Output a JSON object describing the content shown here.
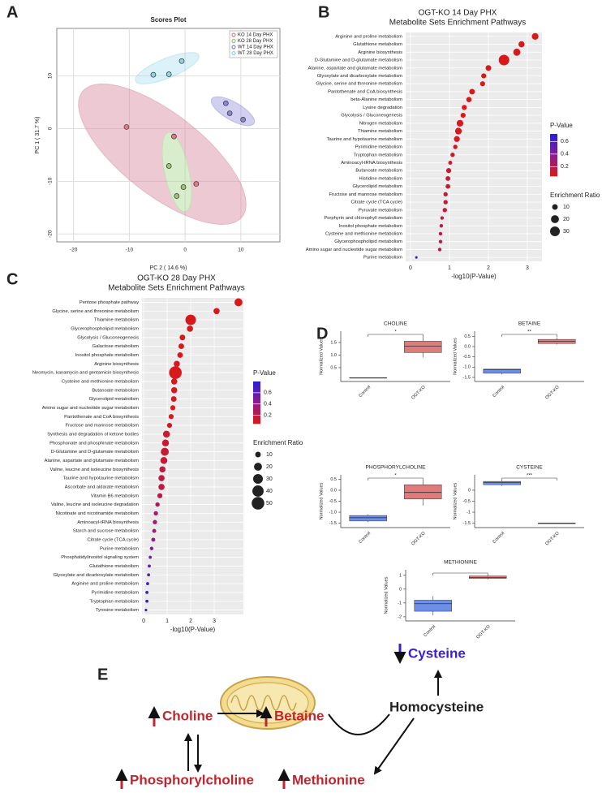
{
  "panel_labels": [
    "A",
    "B",
    "C",
    "D",
    "E"
  ],
  "chart_data": [
    {
      "type": "scatter",
      "title": "Scores Plot",
      "xlabel": "PC 2 ( 14.6 %)",
      "ylabel": "PC 1 ( 31.7 %)",
      "xlim": [
        -23,
        17
      ],
      "ylim": [
        -21.5,
        19
      ],
      "xticks": [
        -20,
        -10,
        0,
        10
      ],
      "yticks": [
        -20,
        -10,
        0,
        10
      ],
      "grid": true,
      "legend": "top-right",
      "series": [
        {
          "name": "KO 14 Day PHX",
          "color": "#e07b86",
          "x": [
            -10.5,
            -2,
            2
          ],
          "y": [
            0.3,
            -1.5,
            -10.5
          ]
        },
        {
          "name": "KO 28 Day PHX",
          "color": "#9cc27a",
          "x": [
            -2.9,
            -0.3,
            -1.5
          ],
          "y": [
            -7.1,
            -11.1,
            -12.8
          ]
        },
        {
          "name": "WT 14 Day PHX",
          "color": "#8b86d6",
          "x": [
            7.3,
            8,
            10.4
          ],
          "y": [
            4.8,
            2.9,
            1.7
          ]
        },
        {
          "name": "WT 28 Day PHX",
          "color": "#8fd3e6",
          "x": [
            -5.7,
            -2.9,
            -0.6
          ],
          "y": [
            10.2,
            10.3,
            12.8
          ]
        }
      ]
    },
    {
      "type": "dot",
      "title": "OGT-KO 14 Day PHX",
      "subtitle": "Metabolite Sets Enrichment Pathways",
      "xlabel": "-log10(P-Value)",
      "xlim": [
        -0.125,
        3.375
      ],
      "xticks": [
        0,
        1,
        2,
        3
      ],
      "categories": [
        "Arginine and proline metabolism",
        "Glutathione metabolism",
        "Arginine biosynthesis",
        "D-Glutamine and D-glutamate metabolism",
        "Alanine, aspartate and glutamate metabolism",
        "Glyoxylate and dicarboxylate metabolism",
        "Glycine, serine and threonine metabolism",
        "Pantothenate and CoA biosynthesis",
        "beta-Alanine metabolism",
        "Lysine degradation",
        "Glycolysis / Gluconeogenesis",
        "Nitrogen metabolism",
        "Thiamine metabolism",
        "Taurine and hypotaurine metabolism",
        "Pyrimidine metabolism",
        "Tryptophan metabolism",
        "Aminoacyl-tRNA biosynthesis",
        "Butanoate metabolism",
        "Histidine metabolism",
        "Glycerolipid metabolism",
        "Fructose and mannose metabolism",
        "Citrate cycle (TCA cycle)",
        "Pyruvate metabolism",
        "Porphyrin and chlorophyll metabolism",
        "Inositol phosphate metabolism",
        "Cysteine and methionine metabolism",
        "Glycerophospholipid metabolism",
        "Amino sugar and nucleotide sugar metabolism",
        "Purine metabolism"
      ],
      "values": [
        3.2,
        2.85,
        2.73,
        2.4,
        2.0,
        1.88,
        1.85,
        1.58,
        1.5,
        1.38,
        1.35,
        1.27,
        1.23,
        1.19,
        1.15,
        1.08,
        1.02,
        0.98,
        0.96,
        0.96,
        0.9,
        0.9,
        0.88,
        0.81,
        0.79,
        0.77,
        0.77,
        0.75,
        0.15
      ],
      "sizes": [
        14,
        12,
        16,
        35,
        10,
        8,
        8,
        10,
        9,
        8,
        8,
        14,
        14,
        11,
        6,
        6,
        5,
        8,
        7,
        7,
        6,
        6,
        6,
        4,
        4,
        4,
        4,
        4,
        2
      ],
      "color_legend": {
        "title": "P-Value",
        "ticks": [
          0.2,
          0.4,
          0.6
        ],
        "clim": [
          0.05,
          0.72
        ],
        "colors": [
          "#d7191c",
          "#8a1e8f",
          "#2b1fd6"
        ]
      },
      "size_legend": {
        "title": "Enrichment Ratio",
        "values": [
          10,
          20,
          30
        ]
      }
    },
    {
      "type": "dot",
      "title": "OGT-KO 28 Day PHX",
      "subtitle": "Metabolite Sets Enrichment Pathways",
      "xlabel": "-log10(P-Value)",
      "xlim": [
        -0.07,
        4.24
      ],
      "xticks": [
        0,
        1,
        2,
        3
      ],
      "categories": [
        "Pentose phosphate pathway",
        "Glycine, serine and threonine metabolism",
        "Thiamine metabolism",
        "Glycerophospholipid metabolism",
        "Glycolysis / Gluconeogenesis",
        "Galactose metabolism",
        "Inositol phosphate metabolism",
        "Arginine biosynthesis",
        "Neomycin, kanamycin and gentamicin biosynthesis",
        "Cysteine and methionine metabolism",
        "Butanoate metabolism",
        "Glycerolipid metabolism",
        "Amino sugar and nucleotide sugar metabolism",
        "Pantothenate and CoA biosynthesis",
        "Fructose and mannose metabolism",
        "Synthesis and degradation of ketone bodies",
        "Phosphonate and phosphinate metabolism",
        "D-Glutamine and D-glutamate metabolism",
        "Alanine, aspartate and glutamate metabolism",
        "Valine, leucine and isoleucine biosynthesis",
        "Taurine and hypotaurine metabolism",
        "Ascorbate and aldarate metabolism",
        "Vitamin B6 metabolism",
        "Valine, leucine and isoleucine degradation",
        "Nicotinate and nicotinamide metabolism",
        "Aminoacyl-tRNA biosynthesis",
        "Starch and sucrose metabolism",
        "Citrate cycle (TCA cycle)",
        "Purine metabolism",
        "Phosphatidylinositol signaling system",
        "Glutathione metabolism",
        "Glyoxylate and dicarboxylate metabolism",
        "Arginine and proline metabolism",
        "Pyrimidine metabolism",
        "Tryptophan metabolism",
        "Tyrosine metabolism"
      ],
      "values": [
        4.03,
        3.1,
        2.0,
        1.97,
        1.65,
        1.6,
        1.55,
        1.41,
        1.35,
        1.3,
        1.3,
        1.28,
        1.24,
        1.17,
        1.1,
        0.97,
        0.93,
        0.9,
        0.86,
        0.8,
        0.76,
        0.76,
        0.69,
        0.59,
        0.52,
        0.48,
        0.45,
        0.41,
        0.34,
        0.28,
        0.24,
        0.21,
        0.17,
        0.14,
        0.14,
        0.1
      ],
      "sizes": [
        20,
        12,
        35,
        12,
        10,
        10,
        10,
        12,
        50,
        12,
        12,
        10,
        8,
        8,
        8,
        15,
        15,
        20,
        15,
        12,
        12,
        12,
        8,
        6,
        6,
        6,
        5,
        5,
        4,
        3,
        3,
        3,
        3,
        3,
        3,
        2
      ],
      "color_legend": {
        "title": "P-Value",
        "ticks": [
          0.2,
          0.4,
          0.6
        ],
        "clim": [
          0.05,
          0.8
        ],
        "colors": [
          "#d7191c",
          "#8a1e8f",
          "#2b1fd6"
        ]
      },
      "size_legend": {
        "title": "Enrichment Ratio",
        "values": [
          10,
          20,
          30,
          40,
          50
        ]
      }
    },
    {
      "type": "box",
      "title": "CHOLINE",
      "ylabel": "Normalized Values",
      "categories": [
        "Control",
        "OGT-KO"
      ],
      "colors": [
        "#6d8fe8",
        "#e07b7b"
      ],
      "ylim": [
        -0.05,
        1.95
      ],
      "yticks": [
        0.5,
        {
          "value": 1,
          "label": "1.0"
        },
        1.5
      ],
      "significance": "*",
      "boxes": [
        {
          "min": 0.1,
          "q1": 0.1,
          "median": 0.1,
          "q3": 0.1,
          "max": 0.1
        },
        {
          "min": 0.9,
          "q1": 1.1,
          "median": 1.35,
          "q3": 1.55,
          "max": 1.75
        }
      ]
    },
    {
      "type": "box",
      "title": "BETAINE",
      "ylabel": "Normalized Values",
      "categories": [
        "Control",
        "OGT-KO"
      ],
      "colors": [
        "#6d8fe8",
        "#e07b7b"
      ],
      "ylim": [
        -1.7,
        0.75
      ],
      "yticks": [
        0.5,
        {
          "value": 0,
          "label": "0.0"
        },
        -0.5,
        {
          "value": -1,
          "label": "-1.0"
        },
        -1.5
      ],
      "significance": "**",
      "boxes": [
        {
          "min": -1.35,
          "q1": -1.3,
          "median": -1.12,
          "q3": -1.1,
          "max": -1.1
        },
        {
          "min": 0.1,
          "q1": 0.15,
          "median": 0.25,
          "q3": 0.35,
          "max": 0.45
        }
      ]
    },
    {
      "type": "box",
      "title": "PHOSPHORYLCHOLINE",
      "ylabel": "Normalized Values",
      "categories": [
        "Control",
        "OGT-KO"
      ],
      "colors": [
        "#6d8fe8",
        "#e07b7b"
      ],
      "ylim": [
        -1.7,
        0.7
      ],
      "yticks": [
        0.5,
        {
          "value": 0,
          "label": "0.0"
        },
        -0.5,
        {
          "value": -1,
          "label": "-1.0"
        },
        -1.5
      ],
      "significance": "*",
      "boxes": [
        {
          "min": -1.45,
          "q1": -1.4,
          "median": -1.25,
          "q3": -1.15,
          "max": -1.1
        },
        {
          "min": -0.7,
          "q1": -0.4,
          "median": -0.1,
          "q3": 0.25,
          "max": 0.45
        }
      ]
    },
    {
      "type": "box",
      "title": "CYSTEINE",
      "ylabel": "Normalized Values",
      "categories": [
        "Control",
        "OGT-KO"
      ],
      "colors": [
        "#6d8fe8",
        "#e07b7b"
      ],
      "ylim": [
        -1.7,
        0.7
      ],
      "yticks": [
        0,
        -0.5,
        -1,
        -1.5
      ],
      "significance": "***",
      "boxes": [
        {
          "min": 0.2,
          "q1": 0.25,
          "median": 0.35,
          "q3": 0.4,
          "max": 0.45
        },
        {
          "min": -1.5,
          "q1": -1.5,
          "median": -1.5,
          "q3": -1.5,
          "max": -1.5
        }
      ]
    },
    {
      "type": "box",
      "title": "METHIONINE",
      "ylabel": "Normalized Values",
      "categories": [
        "Control",
        "OGT-KO"
      ],
      "colors": [
        "#6d8fe8",
        "#e07b7b"
      ],
      "ylim": [
        -2.3,
        1.4
      ],
      "yticks": [
        1,
        0,
        -1,
        -2
      ],
      "boxes": [
        {
          "min": -1.9,
          "q1": -1.6,
          "median": -1.05,
          "q3": -0.8,
          "max": -0.5
        },
        {
          "min": 0.7,
          "q1": 0.78,
          "median": 0.85,
          "q3": 0.95,
          "max": 1.0
        }
      ]
    }
  ],
  "diagram": {
    "choline": "Choline",
    "betaine": "Betaine",
    "cysteine": "Cysteine",
    "homocysteine": "Homocysteine",
    "phosphorylcholine": "Phosphorylcholine",
    "methionine": "Methionine"
  }
}
